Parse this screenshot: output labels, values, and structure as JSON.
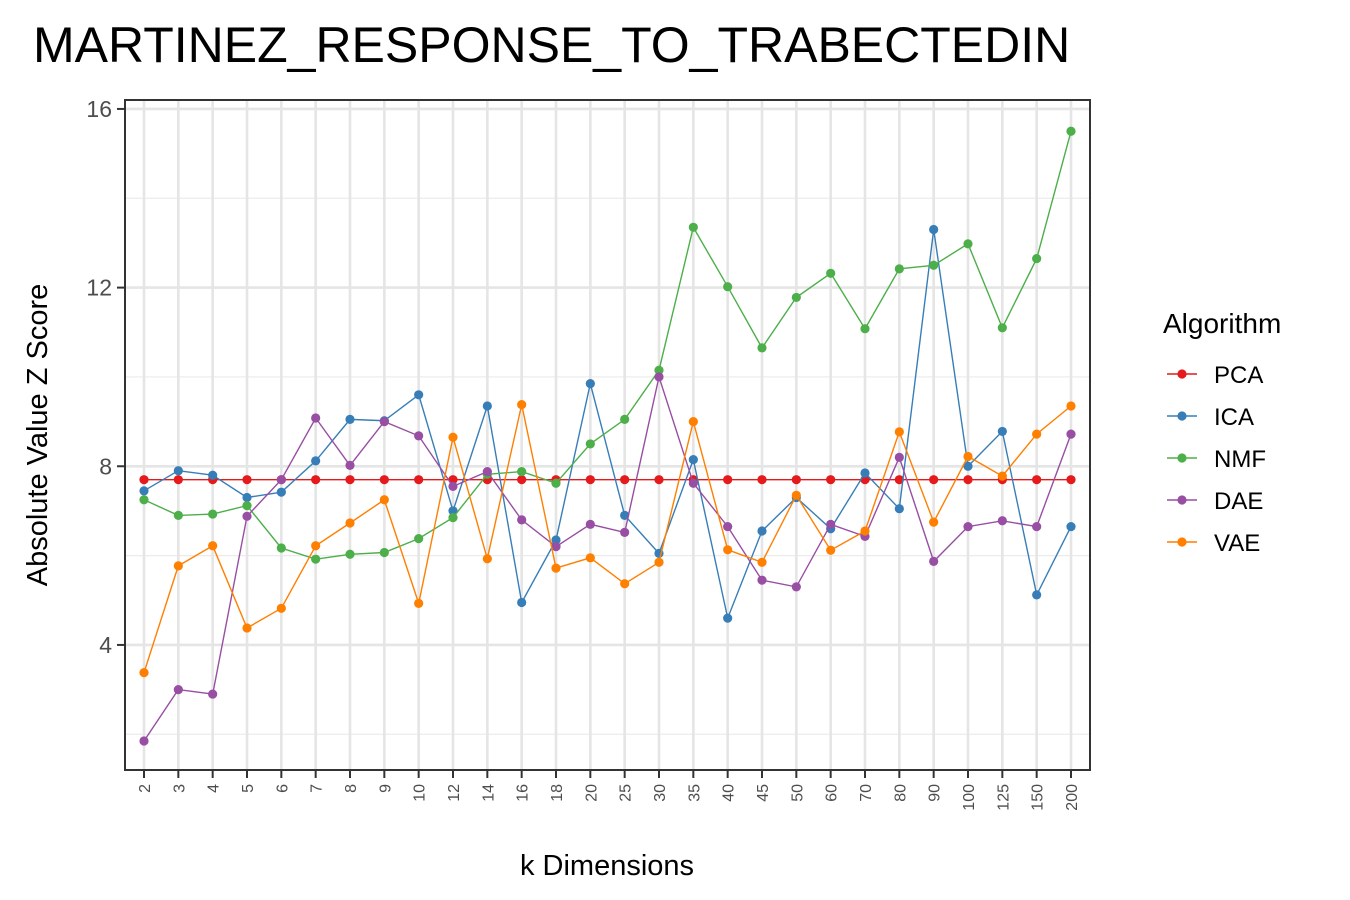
{
  "chart_data": {
    "type": "line",
    "title": "MARTINEZ_RESPONSE_TO_TRABECTEDIN",
    "xlabel": "k Dimensions",
    "ylabel": "Absolute Value Z Score",
    "categories": [
      "2",
      "3",
      "4",
      "5",
      "6",
      "7",
      "8",
      "9",
      "10",
      "12",
      "14",
      "16",
      "18",
      "20",
      "25",
      "30",
      "35",
      "40",
      "45",
      "50",
      "60",
      "70",
      "80",
      "90",
      "100",
      "125",
      "150",
      "200"
    ],
    "ylim": [
      1.2,
      16.2
    ],
    "yticks": [
      "4",
      "8",
      "12",
      "16"
    ],
    "grid": true,
    "legend": {
      "title": "Algorithm",
      "position": "right"
    },
    "series": [
      {
        "name": "PCA",
        "color": "#e41a1c",
        "values": [
          7.7,
          7.7,
          7.7,
          7.7,
          7.7,
          7.7,
          7.7,
          7.7,
          7.7,
          7.7,
          7.7,
          7.7,
          7.7,
          7.7,
          7.7,
          7.7,
          7.7,
          7.7,
          7.7,
          7.7,
          7.7,
          7.7,
          7.7,
          7.7,
          7.7,
          7.7,
          7.7,
          7.7
        ]
      },
      {
        "name": "ICA",
        "color": "#377eb8",
        "values": [
          7.45,
          7.9,
          7.8,
          7.3,
          7.42,
          8.12,
          9.05,
          9.02,
          9.6,
          7.0,
          9.35,
          4.95,
          6.35,
          9.85,
          6.9,
          6.05,
          8.15,
          4.6,
          6.55,
          7.3,
          6.6,
          7.85,
          7.05,
          13.3,
          8.0,
          8.78,
          5.12,
          6.65
        ]
      },
      {
        "name": "NMF",
        "color": "#4daf4a",
        "values": [
          7.25,
          6.9,
          6.93,
          7.12,
          6.17,
          5.92,
          6.03,
          6.07,
          6.38,
          6.85,
          7.82,
          7.88,
          7.62,
          8.5,
          9.05,
          10.15,
          13.35,
          12.02,
          10.65,
          11.78,
          12.32,
          11.08,
          12.42,
          12.5,
          12.98,
          11.1,
          12.65,
          15.5
        ]
      },
      {
        "name": "DAE",
        "color": "#984ea3",
        "values": [
          1.85,
          3.0,
          2.9,
          6.88,
          7.7,
          9.08,
          8.02,
          9.0,
          8.68,
          7.55,
          7.88,
          6.8,
          6.2,
          6.7,
          6.52,
          10.0,
          7.62,
          6.65,
          5.45,
          5.3,
          6.7,
          6.43,
          8.2,
          5.87,
          6.65,
          6.78,
          6.65,
          8.72
        ]
      },
      {
        "name": "VAE",
        "color": "#ff7f00",
        "values": [
          3.38,
          5.77,
          6.22,
          4.38,
          4.82,
          6.22,
          6.73,
          7.25,
          4.93,
          8.65,
          5.93,
          9.38,
          5.72,
          5.95,
          5.37,
          5.85,
          9.0,
          6.13,
          5.85,
          7.35,
          6.12,
          6.55,
          8.77,
          6.75,
          8.22,
          7.78,
          8.72,
          9.35
        ]
      }
    ]
  }
}
